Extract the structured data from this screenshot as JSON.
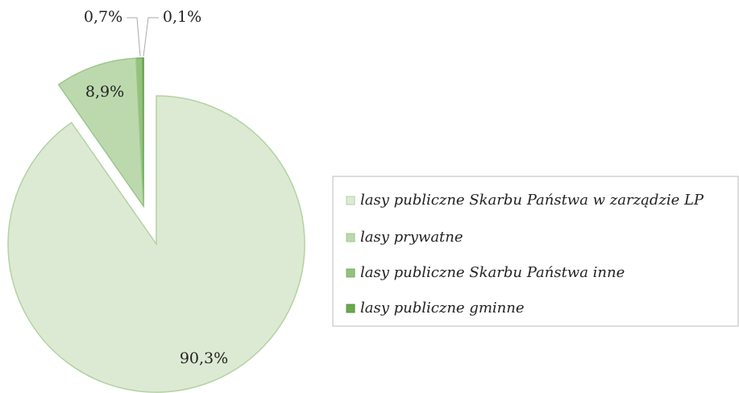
{
  "chart_data": {
    "type": "pie",
    "categories": [
      "lasy publiczne Skarbu Państwa w zarządzie LP",
      "lasy prywatne",
      "lasy publiczne Skarbu Państwa inne",
      "lasy publiczne gminne"
    ],
    "values": [
      90.3,
      8.9,
      0.7,
      0.1
    ],
    "value_labels": [
      "90,3%",
      "8,9%",
      "0,7%",
      "0,1%"
    ],
    "colors": [
      "#dcead3",
      "#bcd9ad",
      "#92c27d",
      "#6aa84f"
    ]
  }
}
